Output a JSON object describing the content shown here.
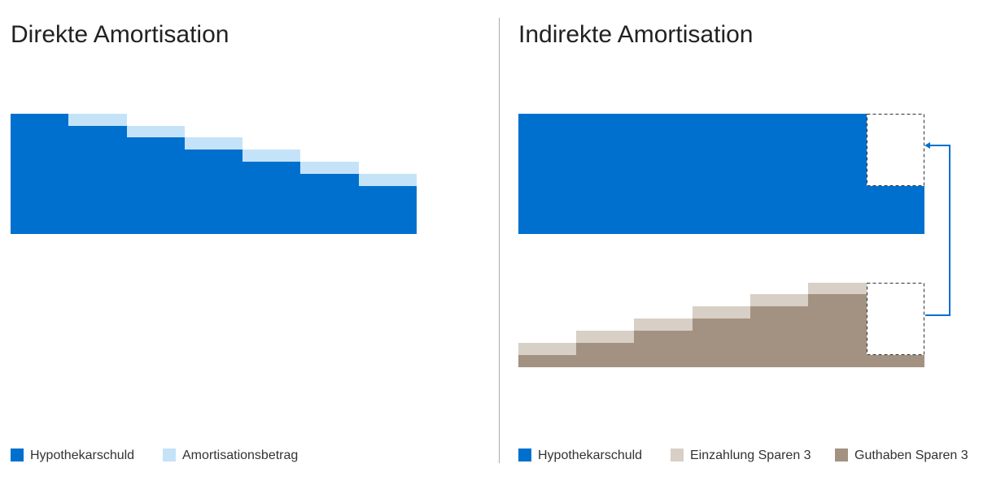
{
  "left": {
    "title": "Direkte Amortisation",
    "legend": [
      "Hypothekarschuld",
      "Amortisationsbetrag"
    ]
  },
  "right": {
    "title": "Indirekte Amortisation",
    "legend": [
      "Hypothekarschuld",
      "Einzahlung Sparen 3",
      "Guthaben Sparen 3"
    ]
  }
}
